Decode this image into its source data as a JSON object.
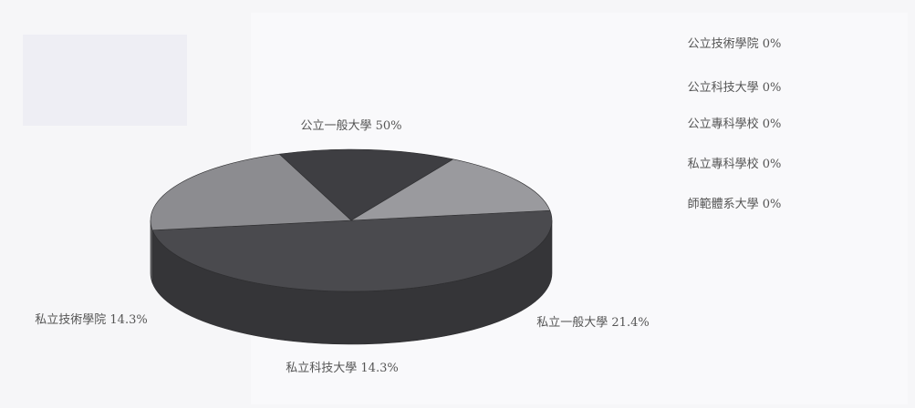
{
  "chart_data": {
    "type": "pie",
    "title": "",
    "slices": [
      {
        "label": "公立一般大學",
        "value": 50,
        "text": "公立一般大學 50%",
        "color": "#4a4a4e"
      },
      {
        "label": "私立一般大學",
        "value": 21.4,
        "text": "私立一般大學 21.4%",
        "color": "#8c8c90"
      },
      {
        "label": "私立科技大學",
        "value": 14.3,
        "text": "私立科技大學 14.3%",
        "color": "#3e3e42"
      },
      {
        "label": "私立技術學院",
        "value": 14.3,
        "text": "私立技術學院 14.3%",
        "color": "#9a9a9e"
      },
      {
        "label": "公立技術學院",
        "value": 0,
        "text": "公立技術學院 0%"
      },
      {
        "label": "公立科技大學",
        "value": 0,
        "text": "公立科技大學 0%"
      },
      {
        "label": "公立專科學校",
        "value": 0,
        "text": "公立專科學校 0%"
      },
      {
        "label": "私立專科學校",
        "value": 0,
        "text": "私立專科學校 0%"
      },
      {
        "label": "師範體系大學",
        "value": 0,
        "text": "師範體系大學 0%"
      }
    ]
  }
}
